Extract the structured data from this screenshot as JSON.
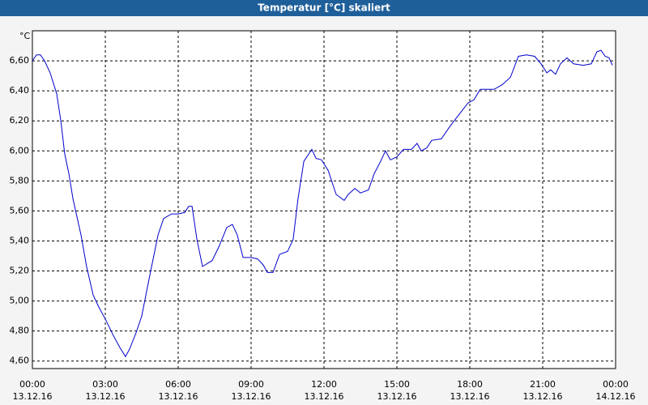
{
  "chart_data": {
    "type": "line",
    "title": "Temperatur [°C] skaliert",
    "y_unit": "°C",
    "x": [
      0,
      0.17,
      0.33,
      0.5,
      0.73,
      1.0,
      1.17,
      1.33,
      1.5,
      1.67,
      2.0,
      2.23,
      2.5,
      2.73,
      3.0,
      3.33,
      3.6,
      3.83,
      4.0,
      4.27,
      4.5,
      4.83,
      5.17,
      5.4,
      5.73,
      6.0,
      6.27,
      6.43,
      6.57,
      6.77,
      7.0,
      7.2,
      7.4,
      7.67,
      8.0,
      8.23,
      8.43,
      8.67,
      9.0,
      9.27,
      9.5,
      9.67,
      9.9,
      10.17,
      10.5,
      10.73,
      10.93,
      11.17,
      11.5,
      11.67,
      11.9,
      12.17,
      12.5,
      12.83,
      13.0,
      13.27,
      13.5,
      13.83,
      14.07,
      14.33,
      14.53,
      14.73,
      15.0,
      15.27,
      15.6,
      15.83,
      16.0,
      16.23,
      16.43,
      16.83,
      17.17,
      17.5,
      17.93,
      18.17,
      18.43,
      19.0,
      19.33,
      19.67,
      20.0,
      20.33,
      20.67,
      20.93,
      21.17,
      21.33,
      21.53,
      21.73,
      22.0,
      22.27,
      22.67,
      23.0,
      23.23,
      23.4,
      23.57,
      23.73,
      23.87
    ],
    "values": [
      6.6,
      6.64,
      6.64,
      6.6,
      6.52,
      6.38,
      6.2,
      5.98,
      5.85,
      5.68,
      5.44,
      5.23,
      5.04,
      4.96,
      4.88,
      4.77,
      4.69,
      4.63,
      4.68,
      4.79,
      4.9,
      5.17,
      5.44,
      5.55,
      5.58,
      5.58,
      5.59,
      5.63,
      5.63,
      5.41,
      5.23,
      5.25,
      5.27,
      5.36,
      5.49,
      5.51,
      5.44,
      5.29,
      5.29,
      5.28,
      5.24,
      5.19,
      5.19,
      5.31,
      5.33,
      5.41,
      5.68,
      5.93,
      6.01,
      5.95,
      5.94,
      5.87,
      5.71,
      5.67,
      5.71,
      5.75,
      5.72,
      5.74,
      5.85,
      5.93,
      6.0,
      5.94,
      5.96,
      6.01,
      6.01,
      6.05,
      6.0,
      6.02,
      6.07,
      6.08,
      6.16,
      6.23,
      6.32,
      6.34,
      6.41,
      6.41,
      6.44,
      6.49,
      6.63,
      6.64,
      6.63,
      6.58,
      6.52,
      6.54,
      6.51,
      6.58,
      6.62,
      6.58,
      6.57,
      6.58,
      6.66,
      6.67,
      6.63,
      6.62,
      6.57
    ],
    "color": "#0000cc",
    "xlim": [
      0,
      24
    ],
    "xticks": [
      {
        "value": 0,
        "label": "00:00"
      },
      {
        "value": 3,
        "label": "03:00"
      },
      {
        "value": 6,
        "label": "06:00"
      },
      {
        "value": 9,
        "label": "09:00"
      },
      {
        "value": 12,
        "label": "12:00"
      },
      {
        "value": 15,
        "label": "15:00"
      },
      {
        "value": 18,
        "label": "18:00"
      },
      {
        "value": 21,
        "label": "21:00"
      },
      {
        "value": 24,
        "label": "00:00"
      }
    ],
    "xtick_dates": [
      "13.12.16",
      "13.12.16",
      "13.12.16",
      "13.12.16",
      "13.12.16",
      "13.12.16",
      "13.12.16",
      "13.12.16",
      "14.12.16"
    ],
    "ylim": [
      4.55,
      6.8
    ],
    "yticks": [
      {
        "value": 4.6,
        "label": "4,60"
      },
      {
        "value": 4.8,
        "label": "4,80"
      },
      {
        "value": 5.0,
        "label": "5,00"
      },
      {
        "value": 5.2,
        "label": "5,20"
      },
      {
        "value": 5.4,
        "label": "5,40"
      },
      {
        "value": 5.6,
        "label": "5,60"
      },
      {
        "value": 5.8,
        "label": "5,80"
      },
      {
        "value": 6.0,
        "label": "6,00"
      },
      {
        "value": 6.2,
        "label": "6,20"
      },
      {
        "value": 6.4,
        "label": "6,40"
      },
      {
        "value": 6.6,
        "label": "6,60"
      }
    ],
    "grid": true
  }
}
